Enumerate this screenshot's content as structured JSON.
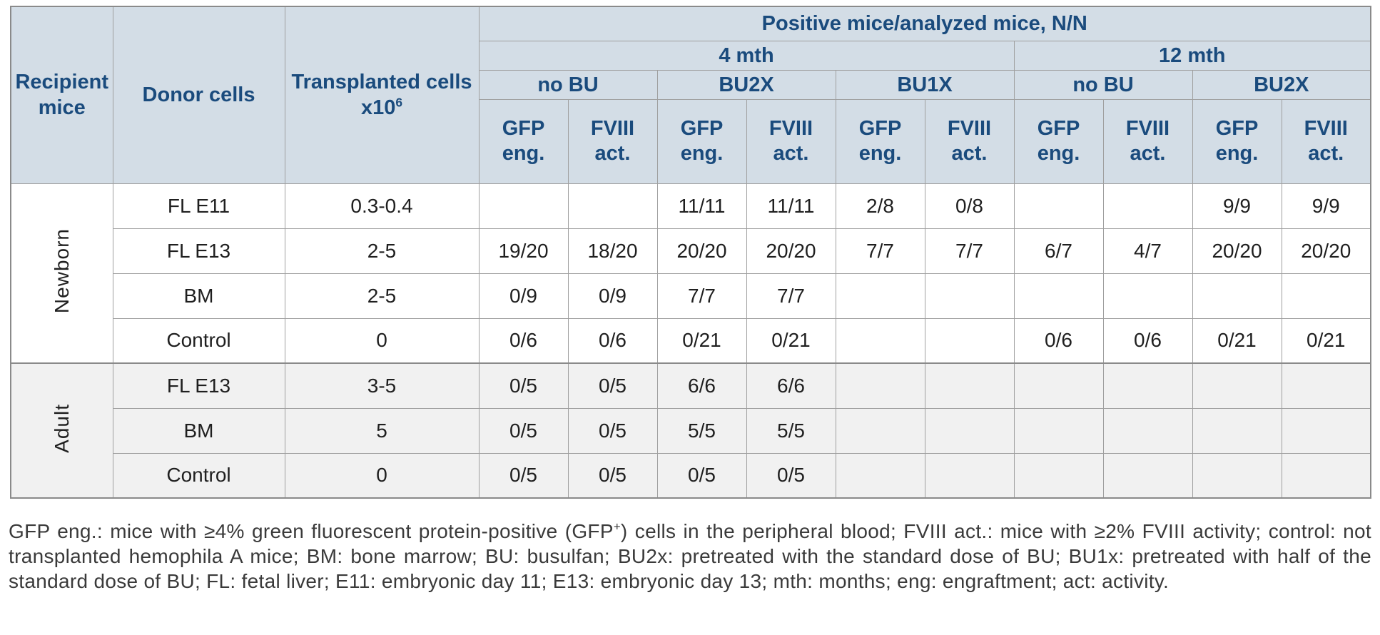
{
  "colors": {
    "header_bg": "#d3dde6",
    "header_text": "#1a4b7d",
    "border": "#9f9f9f",
    "border_dark": "#8a8a8a",
    "adult_row_bg": "#f1f1f1",
    "data_text": "#1f1f1f",
    "footnote_text": "#3a3a3a"
  },
  "table": {
    "corner_headers": [
      {
        "label": "Recipient mice"
      },
      {
        "label": "Donor cells"
      },
      {
        "label": "Transplanted cells x10",
        "sup": "6"
      }
    ],
    "top_header": "Positive mice/analyzed mice, N/N",
    "time_groups": [
      {
        "label": "4 mth",
        "treatments": [
          "no BU",
          "BU2X",
          "BU1X"
        ]
      },
      {
        "label": "12 mth",
        "treatments": [
          "no BU",
          "BU2X"
        ]
      }
    ],
    "measures": [
      {
        "l1": "GFP",
        "l2": "eng."
      },
      {
        "l1": "FVIII",
        "l2": "act."
      }
    ],
    "sections": [
      {
        "label": "Newborn",
        "rows": [
          {
            "donor": "FL E11",
            "transplanted": "0.3-0.4",
            "values": [
              "",
              "",
              "11/11",
              "11/11",
              "2/8",
              "0/8",
              "",
              "",
              "9/9",
              "9/9"
            ]
          },
          {
            "donor": "FL E13",
            "transplanted": "2-5",
            "values": [
              "19/20",
              "18/20",
              "20/20",
              "20/20",
              "7/7",
              "7/7",
              "6/7",
              "4/7",
              "20/20",
              "20/20"
            ]
          },
          {
            "donor": "BM",
            "transplanted": "2-5",
            "values": [
              "0/9",
              "0/9",
              "7/7",
              "7/7",
              "",
              "",
              "",
              "",
              "",
              ""
            ]
          },
          {
            "donor": "Control",
            "transplanted": "0",
            "values": [
              "0/6",
              "0/6",
              "0/21",
              "0/21",
              "",
              "",
              "0/6",
              "0/6",
              "0/21",
              "0/21"
            ]
          }
        ]
      },
      {
        "label": "Adult",
        "rows": [
          {
            "donor": "FL E13",
            "transplanted": "3-5",
            "values": [
              "0/5",
              "0/5",
              "6/6",
              "6/6",
              "",
              "",
              "",
              "",
              "",
              ""
            ]
          },
          {
            "donor": "BM",
            "transplanted": "5",
            "values": [
              "0/5",
              "0/5",
              "5/5",
              "5/5",
              "",
              "",
              "",
              "",
              "",
              ""
            ]
          },
          {
            "donor": "Control",
            "transplanted": "0",
            "values": [
              "0/5",
              "0/5",
              "0/5",
              "0/5",
              "",
              "",
              "",
              "",
              "",
              ""
            ]
          }
        ]
      }
    ]
  },
  "footnote": {
    "part1": "GFP eng.: mice with ≥4% green fluorescent protein-positive (GFP",
    "sup": "+",
    "part2": ") cells in the peripheral blood; FVIII act.: mice with ≥2% FVIII activity; control: not transplanted hemophila A mice; BM: bone marrow; BU: busulfan; BU2x: pretreated with the standard dose of BU; BU1x: pretreated with half of the standard dose of BU; FL: fetal liver; E11: embryonic day 11; E13: embryonic day 13; mth: months; eng: engraftment; act: activity."
  }
}
